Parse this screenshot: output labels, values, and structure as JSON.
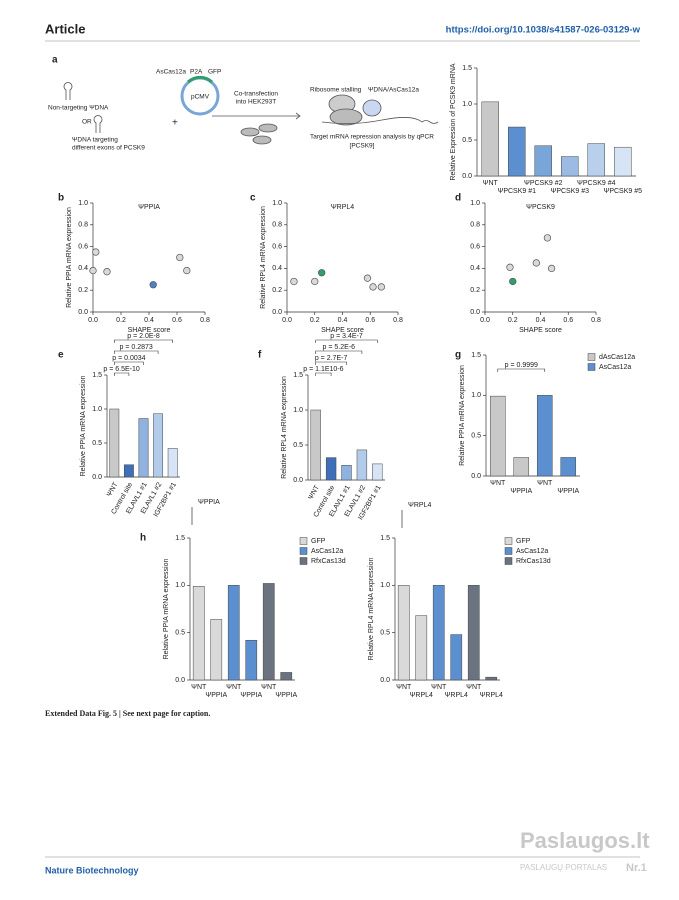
{
  "header": {
    "title": "Article",
    "url": "https://doi.org/10.1038/s41587-026-03129-w"
  },
  "panels": [
    "a",
    "b",
    "c",
    "d",
    "e",
    "f",
    "g",
    "h"
  ],
  "diagram": {
    "left_top": "Non-targeting ΨDNA",
    "or": "OR",
    "left_bottom_1": "ΨDNA targeting",
    "left_bottom_2": "different exons of PCSK9",
    "plus": "+",
    "plasmid_gene": "AsCas12a",
    "plasmid_p2a": "P2A",
    "plasmid_gfp": "GFP",
    "plasmid_promoter": "pCMV",
    "step_1": "Co-transfection",
    "step_2": "into HEK293T",
    "ribosome": "Ribosome stalling",
    "complex": "ΨDNA/AsCas12a",
    "readout_1": "Target mRNA repression analysis by qPCR",
    "readout_2": "[PCSK9]"
  },
  "caption": "Extended Data Fig. 5 | See next page for caption.",
  "footer": "Nature Biotechnology",
  "watermark": {
    "brand": "Paslaugos.lt",
    "tagline": "PASLAUGŲ PORTALAS",
    "rank": "Nr.1"
  },
  "chart_data": [
    {
      "type": "bar",
      "ylabel": "Relative Expression of PCSK9 mRNA",
      "categories": [
        "ΨNT",
        "ΨPCSK9 #1",
        "ΨPCSK9 #2",
        "ΨPCSK9 #3",
        "ΨPCSK9 #4",
        "ΨPCSK9 #5"
      ],
      "values": [
        1.03,
        0.68,
        0.42,
        0.27,
        0.45,
        0.4
      ],
      "colors": [
        "#c8c8c8",
        "#5b8fd0",
        "#7aa5d9",
        "#9bbbe3",
        "#b9d0ec",
        "#d6e4f5"
      ],
      "ylim": [
        0,
        1.5
      ],
      "yticks": [
        {
          "value": 0,
          "label": "0.0"
        },
        0.5,
        {
          "value": 1,
          "label": "1.0"
        },
        1.5
      ]
    },
    {
      "type": "scatter",
      "title": "ΨPPIA",
      "ylabel": "Relative PPIA mRNA expression",
      "xlabel": "SHAPE score",
      "x": [
        0.02,
        0.0,
        0.1,
        0.43,
        0.62,
        0.67
      ],
      "values": [
        0.55,
        0.38,
        0.37,
        0.25,
        0.5,
        0.38
      ],
      "colors": [
        "#d9d9d9",
        "#d9d9d9",
        "#d9d9d9",
        "#4f7fc4",
        "#d9d9d9",
        "#d9d9d9"
      ],
      "xlim": [
        0,
        0.8
      ],
      "xticks": [
        {
          "value": 0,
          "label": "0.0"
        },
        0.2,
        0.4,
        0.6,
        0.8
      ],
      "ylim": [
        0,
        1
      ],
      "yticks": [
        {
          "value": 0,
          "label": "0.0"
        },
        0.2,
        0.4,
        0.6,
        0.8,
        {
          "value": 1,
          "label": "1.0"
        }
      ]
    },
    {
      "type": "scatter",
      "title": "ΨRPL4",
      "ylabel": "Relative RPL4 mRNA expression",
      "xlabel": "SHAPE score",
      "x": [
        0.05,
        0.2,
        0.25,
        0.58,
        0.62,
        0.68
      ],
      "values": [
        0.28,
        0.28,
        0.36,
        0.31,
        0.23,
        0.23
      ],
      "colors": [
        "#d9d9d9",
        "#d9d9d9",
        "#2e9e6a",
        "#d9d9d9",
        "#d9d9d9",
        "#d9d9d9"
      ],
      "xlim": [
        0,
        0.8
      ],
      "xticks": [
        {
          "value": 0,
          "label": "0.0"
        },
        0.2,
        0.4,
        0.6,
        0.8
      ],
      "ylim": [
        0,
        1
      ],
      "yticks": [
        {
          "value": 0,
          "label": "0.0"
        },
        0.2,
        0.4,
        0.6,
        0.8,
        {
          "value": 1,
          "label": "1.0"
        }
      ]
    },
    {
      "type": "scatter",
      "title": "ΨPCSK9",
      "xlabel": "SHAPE score",
      "x": [
        0.18,
        0.2,
        0.37,
        0.45,
        0.48
      ],
      "values": [
        0.41,
        0.28,
        0.45,
        0.68,
        0.4
      ],
      "colors": [
        "#d9d9d9",
        "#2e9e6a",
        "#d9d9d9",
        "#d9d9d9",
        "#d9d9d9"
      ],
      "xlim": [
        0,
        0.8
      ],
      "xticks": [
        {
          "value": 0,
          "label": "0.0"
        },
        0.2,
        0.4,
        0.6,
        0.8
      ],
      "ylim": [
        0,
        1
      ],
      "yticks": [
        {
          "value": 0,
          "label": "0.0"
        },
        0.2,
        0.4,
        0.6,
        0.8,
        {
          "value": 1,
          "label": "1.0"
        }
      ]
    },
    {
      "type": "bar",
      "ylabel": "Relative PPIA mRNA expression",
      "group_label": "ΨPPIA",
      "categories": [
        "ΨNT",
        "Control site",
        "ELAVL1 #1",
        "ELAVL1 #2",
        "IGF2BP1 #1"
      ],
      "values": [
        1.0,
        0.18,
        0.86,
        0.93,
        0.42
      ],
      "colors": [
        "#c8c8c8",
        "#3f6fb8",
        "#8fb2df",
        "#b3cbea",
        "#d6e4f5"
      ],
      "annotations": [
        "p = 6.5E-10",
        "p = 0.0034",
        "p = 0.2873",
        "p = 2.0E-8"
      ],
      "ylim": [
        0,
        1.5
      ],
      "yticks": [
        {
          "value": 0,
          "label": "0.0"
        },
        0.5,
        {
          "value": 1,
          "label": "1.0"
        },
        1.5
      ]
    },
    {
      "type": "bar",
      "ylabel": "Relative RPL4 mRNA expression",
      "group_label": "ΨRPL4",
      "categories": [
        "ΨNT",
        "Control site",
        "ELAVL1 #1",
        "ELAVL1 #2",
        "IGF2BP1 #1"
      ],
      "values": [
        1.0,
        0.32,
        0.21,
        0.43,
        0.23
      ],
      "colors": [
        "#c8c8c8",
        "#3f6fb8",
        "#8fb2df",
        "#b3cbea",
        "#d6e4f5"
      ],
      "annotations": [
        "p = 1.1E10-6",
        "p = 2.7E-7",
        "p = 5.2E-6",
        "p = 3.4E-7"
      ],
      "ylim": [
        0,
        1.5
      ],
      "yticks": [
        {
          "value": 0,
          "label": "0.0"
        },
        0.5,
        {
          "value": 1,
          "label": "1.0"
        },
        1.5
      ]
    },
    {
      "type": "grouped",
      "ylabel": "Relative PPIA mRNA expression",
      "categories": [
        "ΨNT",
        "ΨPPIA",
        "ΨNT",
        "ΨPPIA"
      ],
      "series": [
        {
          "name": "dAsCas12a",
          "color": "#c8c8c8",
          "values": [
            0.99,
            0.23,
            null,
            null
          ]
        },
        {
          "name": "AsCas12a",
          "color": "#5b8fd0",
          "values": [
            null,
            null,
            1.0,
            0.23
          ]
        }
      ],
      "annotations": [
        "p = 0.9999"
      ],
      "ylim": [
        0,
        1.5
      ],
      "yticks": [
        {
          "value": 0,
          "label": "0.0"
        },
        0.5,
        {
          "value": 1,
          "label": "1.0"
        },
        1.5
      ]
    },
    {
      "type": "grouped",
      "ylabel": "Relative PPIA mRNA expression",
      "categories": [
        "ΨNT",
        "ΨPPIA",
        "ΨNT",
        "ΨPPIA",
        "ΨNT",
        "ΨPPIA"
      ],
      "series": [
        {
          "name": "GFP",
          "color": "#d9d9d9",
          "values": [
            0.99,
            0.64,
            null,
            null,
            null,
            null
          ]
        },
        {
          "name": "AsCas12a",
          "color": "#5b8fd0",
          "values": [
            null,
            null,
            1.0,
            0.42,
            null,
            null
          ]
        },
        {
          "name": "RfxCas13d",
          "color": "#6b7280",
          "values": [
            null,
            null,
            null,
            null,
            1.02,
            0.08
          ]
        }
      ],
      "ylim": [
        0,
        1.5
      ],
      "yticks": [
        {
          "value": 0,
          "label": "0.0"
        },
        0.5,
        {
          "value": 1,
          "label": "1.0"
        },
        1.5
      ]
    },
    {
      "type": "grouped",
      "ylabel": "Relative RPL4 mRNA expression",
      "categories": [
        "ΨNT",
        "ΨRPL4",
        "ΨNT",
        "ΨRPL4",
        "ΨNT",
        "ΨRPL4"
      ],
      "series": [
        {
          "name": "GFP",
          "color": "#d9d9d9",
          "values": [
            1.0,
            0.68,
            null,
            null,
            null,
            null
          ]
        },
        {
          "name": "AsCas12a",
          "color": "#5b8fd0",
          "values": [
            null,
            null,
            1.0,
            0.48,
            null,
            null
          ]
        },
        {
          "name": "RfxCas13d",
          "color": "#6b7280",
          "values": [
            null,
            null,
            null,
            null,
            1.0,
            0.03
          ]
        }
      ],
      "ylim": [
        0,
        1.5
      ],
      "yticks": [
        {
          "value": 0,
          "label": "0.0"
        },
        0.5,
        {
          "value": 1,
          "label": "1.0"
        },
        1.5
      ]
    }
  ]
}
